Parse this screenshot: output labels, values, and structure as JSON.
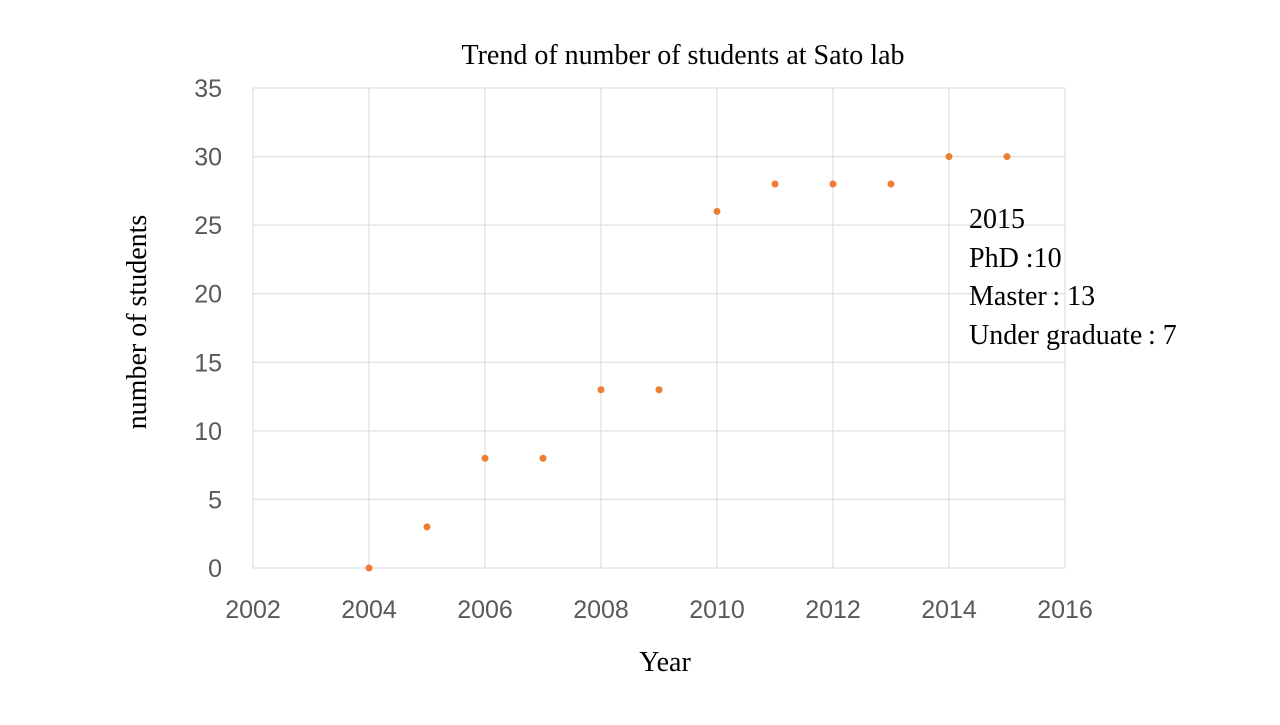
{
  "chart_data": {
    "type": "scatter",
    "title": "Trend of number of students at Sato lab",
    "xlabel": "Year",
    "ylabel": "number of students",
    "xlim": [
      2002,
      2016
    ],
    "ylim": [
      0,
      35
    ],
    "xticks": [
      2002,
      2004,
      2006,
      2008,
      2010,
      2012,
      2014,
      2016
    ],
    "yticks": [
      0,
      5,
      10,
      15,
      20,
      25,
      30,
      35
    ],
    "grid": true,
    "legend": "none",
    "x": [
      2004,
      2005,
      2006,
      2007,
      2008,
      2009,
      2010,
      2011,
      2012,
      2013,
      2014,
      2015
    ],
    "y": [
      0,
      3,
      8,
      8,
      13,
      13,
      26,
      28,
      28,
      28,
      30,
      30
    ],
    "marker_color": "#ED7D31",
    "annotation": {
      "lines": [
        "2015",
        "PhD :10",
        "Master : 13",
        "Under graduate : 7"
      ]
    }
  }
}
